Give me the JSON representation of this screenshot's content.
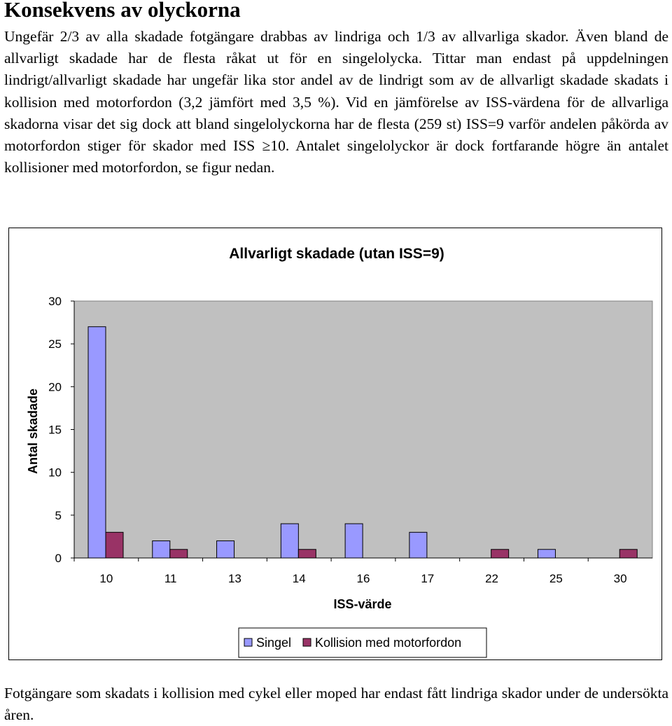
{
  "document": {
    "heading": "Konsekvens av olyckorna",
    "intro_paragraph": "Ungefär 2/3 av alla skadade fotgängare drabbas av lindriga och 1/3 av allvarliga skador. Även bland de allvarligt skadade har de flesta råkat ut för en singelolycka. Tittar man endast på uppdelningen lindrigt/allvarligt skadade har ungefär lika stor andel av de lindrigt som av de allvarligt skadade skadats i kollision med motorfordon (3,2 jämfört med 3,5 %). Vid en jämförelse av ISS-värdena för de allvarliga skadorna visar det sig dock att bland singelolyckorna har de flesta (259 st) ISS=9 varför andelen påkörda av motorfordon stiger för skador med ISS ≥10. Antalet singelolyckor är dock fortfarande högre än antalet kollisioner med motorfordon, se figur nedan.",
    "closing_paragraph": "Fotgängare som skadats i kollision med cykel eller moped har endast fått lindriga skador under de undersökta åren."
  },
  "chart_data": {
    "type": "bar",
    "title": "Allvarligt skadade (utan ISS=9)",
    "xlabel": "ISS-värde",
    "ylabel": "Antal skadade",
    "categories": [
      "10",
      "11",
      "13",
      "14",
      "16",
      "17",
      "22",
      "25",
      "30"
    ],
    "series": [
      {
        "name": "Singel",
        "values": [
          27,
          2,
          2,
          4,
          4,
          3,
          0,
          1,
          0
        ],
        "color": "#9999ff"
      },
      {
        "name": "Kollision med motorfordon",
        "values": [
          3,
          1,
          0,
          1,
          0,
          0,
          1,
          0,
          1
        ],
        "color": "#993366"
      }
    ],
    "ylim": [
      0,
      30
    ],
    "yticks": [
      "0",
      "5",
      "10",
      "15",
      "20",
      "25",
      "30"
    ],
    "grid": false,
    "plot_background": "#c0c0c0",
    "legend_position": "bottom"
  }
}
